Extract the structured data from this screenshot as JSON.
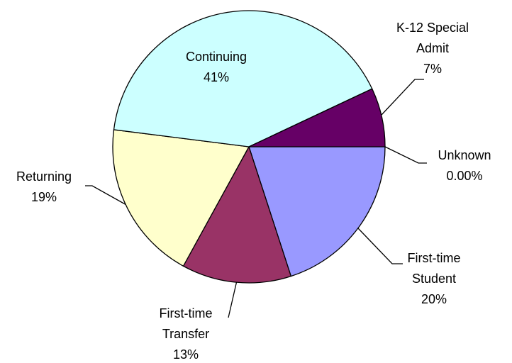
{
  "chart_data": {
    "type": "pie",
    "categories": [
      "Unknown",
      "First-time Student",
      "First-time Transfer",
      "Returning",
      "Continuing",
      "K-12 Special Admit"
    ],
    "values": [
      0,
      20,
      13,
      19,
      41,
      7
    ],
    "value_labels": [
      "0.00%",
      "20%",
      "13%",
      "19%",
      "41%",
      "7%"
    ],
    "colors": [
      "#ffffff",
      "#9999ff",
      "#993366",
      "#ffffcc",
      "#ccffff",
      "#660066"
    ]
  }
}
